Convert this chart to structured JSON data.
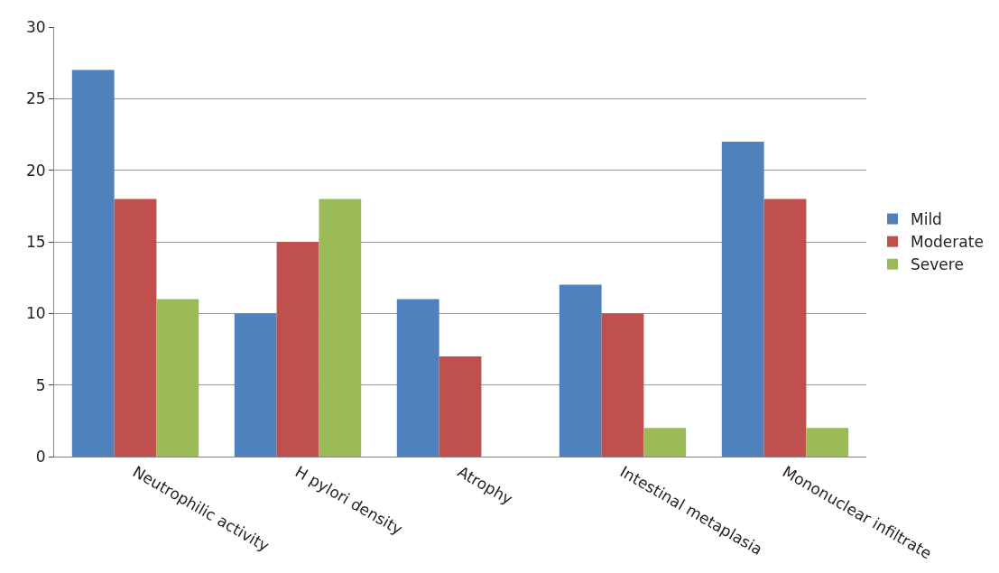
{
  "chart_data": {
    "type": "bar",
    "categories": [
      "Neutrophilic activity",
      "H pylori density",
      "Atrophy",
      "Intestinal metaplasia",
      "Mononuclear infiltrate"
    ],
    "series": [
      {
        "name": "Mild",
        "color": "#4f81bd",
        "values": [
          27,
          10,
          11,
          12,
          22
        ]
      },
      {
        "name": "Moderate",
        "color": "#c0504d",
        "values": [
          18,
          15,
          7,
          10,
          18
        ]
      },
      {
        "name": "Severe",
        "color": "#9bbb59",
        "values": [
          11,
          18,
          0,
          2,
          2
        ]
      }
    ],
    "ylim": [
      0,
      30
    ],
    "yticks": [
      0,
      5,
      10,
      15,
      20,
      25,
      30
    ],
    "grid": "y",
    "legend": "right"
  }
}
